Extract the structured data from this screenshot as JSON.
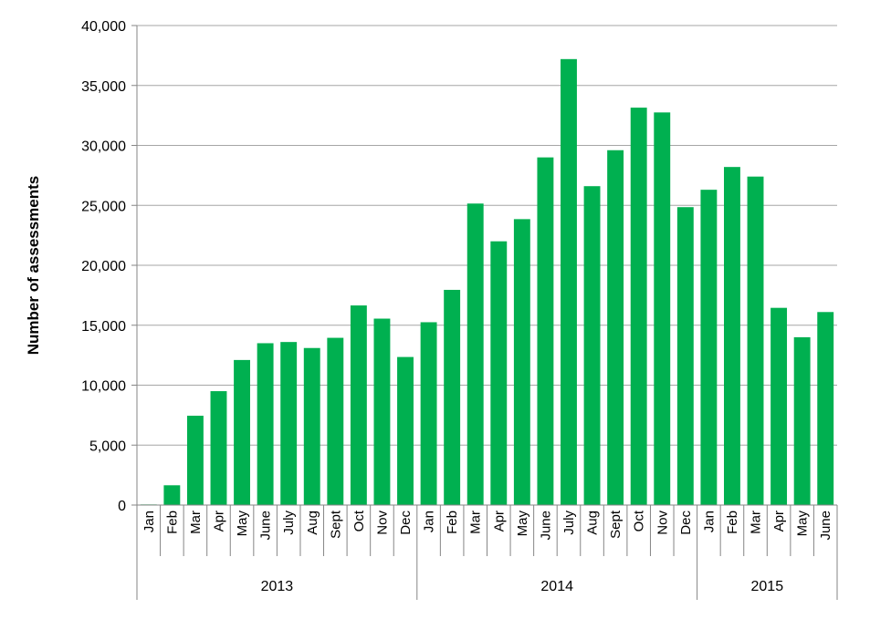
{
  "chart_data": {
    "type": "bar",
    "title": "",
    "xlabel": "",
    "ylabel": "Number of assessments",
    "ylim": [
      0,
      40000
    ],
    "y_ticks": [
      "0",
      "5,000",
      "10,000",
      "15,000",
      "20,000",
      "25,000",
      "30,000",
      "35,000",
      "40,000"
    ],
    "y_tick_values": [
      0,
      5000,
      10000,
      15000,
      20000,
      25000,
      30000,
      35000,
      40000
    ],
    "grid": true,
    "legend": "none",
    "bar_color": "#00b050",
    "categories": [
      "Jan",
      "Feb",
      "Mar",
      "Apr",
      "May",
      "June",
      "July",
      "Aug",
      "Sept",
      "Oct",
      "Nov",
      "Dec",
      "Jan",
      "Feb",
      "Mar",
      "Apr",
      "May",
      "June",
      "July",
      "Aug",
      "Sept",
      "Oct",
      "Nov",
      "Dec",
      "Jan",
      "Feb",
      "Mar",
      "Apr",
      "May",
      "June"
    ],
    "groups": [
      {
        "label": "2013",
        "count": 12
      },
      {
        "label": "2014",
        "count": 12
      },
      {
        "label": "2015",
        "count": 6
      }
    ],
    "values": [
      50,
      1650,
      7450,
      9500,
      12100,
      13500,
      13600,
      13100,
      13950,
      16650,
      15550,
      12350,
      15250,
      17950,
      25150,
      22000,
      23850,
      29000,
      37200,
      26600,
      29600,
      33150,
      32750,
      24850,
      26300,
      28200,
      27400,
      16450,
      14000,
      16100
    ]
  }
}
